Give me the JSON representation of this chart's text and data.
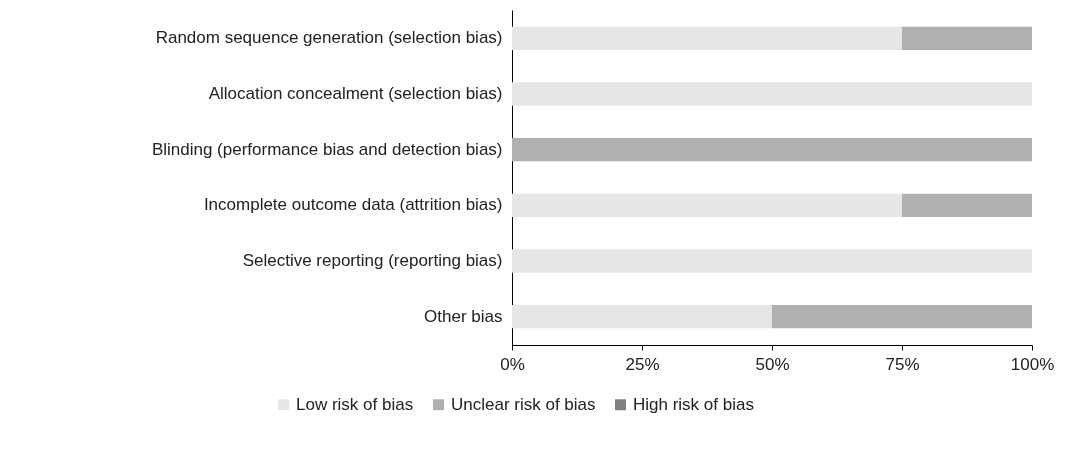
{
  "chart_data": {
    "type": "bar",
    "orientation": "horizontal",
    "stacked": true,
    "categories": [
      "Random sequence generation (selection bias)",
      "Allocation concealment (selection bias)",
      "Blinding (performance bias and detection bias)",
      "Incomplete outcome data (attrition bias)",
      "Selective reporting (reporting bias)",
      "Other bias"
    ],
    "series": [
      {
        "name": "Low risk of bias",
        "color": "#e6e6e6",
        "values": [
          75,
          100,
          0,
          75,
          100,
          50
        ]
      },
      {
        "name": "Unclear risk of bias",
        "color": "#b0b0b0",
        "values": [
          25,
          0,
          100,
          25,
          0,
          50
        ]
      },
      {
        "name": "High risk of bias",
        "color": "#7f7f7f",
        "values": [
          0,
          0,
          0,
          0,
          0,
          0
        ]
      }
    ],
    "xlim": [
      0,
      100
    ],
    "xticks": [
      {
        "value": 0,
        "label": "0%"
      },
      {
        "value": 25,
        "label": "25%"
      },
      {
        "value": 50,
        "label": "50%"
      },
      {
        "value": 75,
        "label": "75%"
      },
      {
        "value": 100,
        "label": "100%"
      }
    ],
    "legend": "bottom",
    "grid": false
  }
}
